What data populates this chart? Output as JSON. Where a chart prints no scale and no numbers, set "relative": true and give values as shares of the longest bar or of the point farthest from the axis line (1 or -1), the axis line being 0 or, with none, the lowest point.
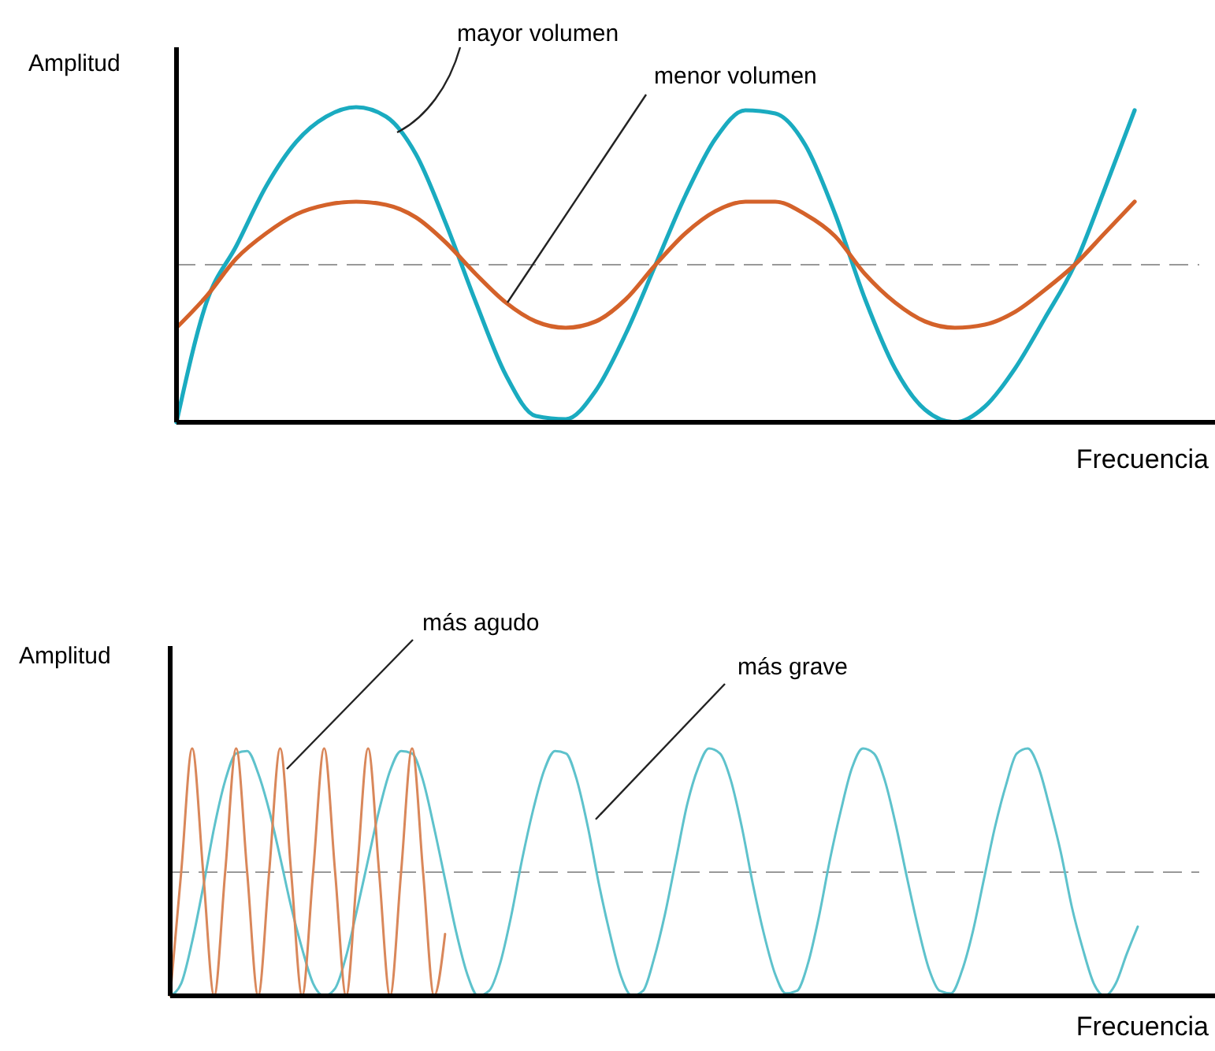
{
  "chart_data": [
    {
      "type": "line",
      "relative": true,
      "ylabel": "Amplitud",
      "xlabel": "Frecuencia",
      "line_style": "solid",
      "categories": [
        null,
        null,
        null,
        null,
        null,
        null,
        null,
        null,
        null,
        null,
        null,
        null,
        null,
        null,
        null,
        null,
        null,
        null,
        null,
        null,
        null,
        null,
        null,
        null,
        null,
        null,
        null,
        null,
        null,
        null,
        null,
        null,
        null
      ],
      "series": [
        {
          "color": "#1aabc0",
          "values": [
            0,
            0.38,
            0.56,
            0.75,
            0.89,
            0.97,
            1,
            0.97,
            0.85,
            0.63,
            0.38,
            0.15,
            0.02,
            0.01,
            0.1,
            0.28,
            0.5,
            0.72,
            0.9,
            0.99,
            0.98,
            0.88,
            0.66,
            0.39,
            0.17,
            0.04,
            0,
            0.05,
            0.17,
            0.33,
            0.5,
            0.74,
            0.99
          ]
        },
        {
          "color": "#d4622a",
          "values": [
            0.3,
            0.4,
            0.52,
            0.6,
            0.66,
            0.69,
            0.7,
            0.69,
            0.65,
            0.57,
            0.47,
            0.38,
            0.32,
            0.3,
            0.32,
            0.39,
            0.5,
            0.6,
            0.67,
            0.7,
            0.7,
            0.66,
            0.59,
            0.47,
            0.38,
            0.32,
            0.3,
            0.31,
            0.35,
            0.42,
            0.5,
            0.6,
            0.7
          ]
        }
      ],
      "ref_lines": [
        {
          "axis": "y",
          "value": 0.5,
          "color": "#999999",
          "line_style": "dashed"
        }
      ],
      "annotations": [
        "mayor volumen",
        "menor volumen"
      ]
    },
    {
      "type": "line",
      "relative": true,
      "ylabel": "Amplitud",
      "xlabel": "Frecuencia",
      "line_style": "solid",
      "categories": [
        null,
        null,
        null,
        null,
        null,
        null,
        null,
        null,
        null,
        null,
        null,
        null,
        null,
        null,
        null,
        null,
        null,
        null,
        null,
        null,
        null,
        null,
        null,
        null,
        null,
        null,
        null,
        null,
        null,
        null,
        null,
        null,
        null,
        null,
        null,
        null,
        null,
        null,
        null,
        null,
        null,
        null,
        null,
        null,
        null,
        null,
        null,
        null,
        null,
        null,
        null,
        null,
        null,
        null,
        null,
        null,
        null,
        null,
        null,
        null,
        null,
        null,
        null,
        null,
        null,
        null,
        null,
        null,
        null,
        null,
        null,
        null,
        null,
        null,
        null,
        null,
        null,
        null,
        null,
        null,
        null,
        null,
        null,
        null,
        null,
        null,
        null,
        null,
        null
      ],
      "series": [
        {
          "color": "#5ec2cc",
          "values": [
            0,
            0.05,
            0.22,
            0.44,
            0.68,
            0.87,
            0.98,
            0.99,
            0.9,
            0.75,
            0.56,
            0.36,
            0.19,
            0.05,
            0,
            0.03,
            0.16,
            0.35,
            0.55,
            0.75,
            0.91,
            0.99,
            0.98,
            0.87,
            0.68,
            0.47,
            0.26,
            0.09,
            0,
            0.02,
            0.13,
            0.32,
            0.55,
            0.75,
            0.91,
            0.99,
            0.98,
            0.87,
            0.68,
            0.45,
            0.25,
            0.08,
            0,
            0.02,
            0.15,
            0.33,
            0.55,
            0.77,
            0.92,
            1,
            0.98,
            0.87,
            0.68,
            0.45,
            0.25,
            0.09,
            0.01,
            0.02,
            0.13,
            0.32,
            0.55,
            0.75,
            0.92,
            1,
            0.98,
            0.87,
            0.69,
            0.48,
            0.28,
            0.11,
            0.02,
            0.01,
            0.1,
            0.26,
            0.47,
            0.68,
            0.85,
            0.98,
            1,
            0.92,
            0.76,
            0.58,
            0.36,
            0.19,
            0.05,
            0,
            0.05,
            0.17,
            0.28
          ]
        },
        {
          "color": "#d9875a",
          "values": [
            0,
            0.5,
            1,
            0.5,
            0,
            0.5,
            1,
            0.5,
            0,
            0.5,
            1,
            0.5,
            0,
            0.5,
            1,
            0.5,
            0,
            0.5,
            1,
            0.5,
            0,
            0.5,
            1,
            0.5,
            0,
            0.25,
            null,
            null,
            null,
            null,
            null,
            null,
            null,
            null,
            null,
            null,
            null,
            null,
            null,
            null,
            null,
            null,
            null,
            null,
            null,
            null,
            null,
            null,
            null,
            null,
            null,
            null,
            null,
            null,
            null,
            null,
            null,
            null,
            null,
            null,
            null,
            null,
            null,
            null,
            null,
            null,
            null,
            null,
            null,
            null,
            null,
            null,
            null,
            null,
            null,
            null,
            null,
            null,
            null,
            null,
            null,
            null,
            null,
            null,
            null,
            null,
            null,
            null,
            null
          ]
        }
      ],
      "ref_lines": [
        {
          "axis": "y",
          "value": 0.5,
          "color": "#999999",
          "line_style": "dashed"
        }
      ],
      "annotations": [
        "más agudo",
        "más grave"
      ]
    }
  ]
}
